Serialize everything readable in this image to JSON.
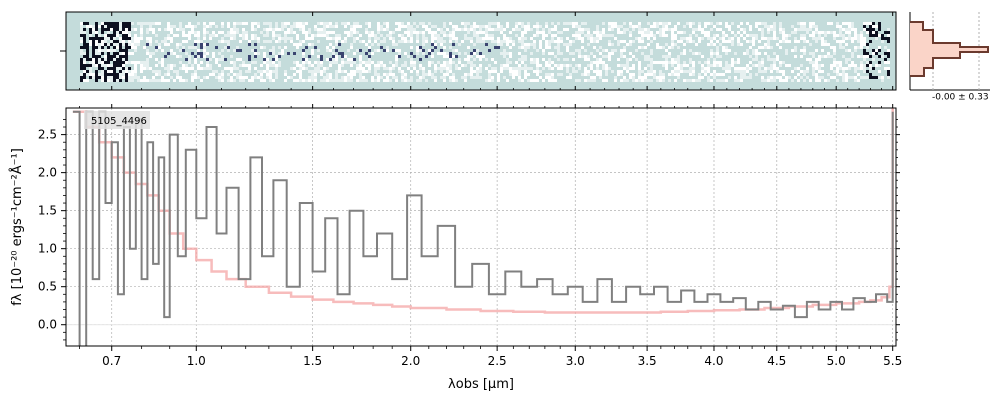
{
  "chart_data": {
    "type": "line",
    "object_label": "5105_4496",
    "xlabel": "λobs [μm]",
    "ylabel": "fλ [10⁻²⁰ ergs⁻¹cm⁻²Å⁻¹]",
    "x_ticks": [
      0.7,
      1.0,
      1.5,
      2.0,
      2.5,
      3.0,
      3.5,
      4.0,
      4.5,
      5.0,
      5.5
    ],
    "x_tick_labels": [
      "0.7",
      "1.0",
      "1.5",
      "2.0",
      "2.5",
      "3.0",
      "3.5",
      "4.0",
      "4.5",
      "5.0",
      "5.5"
    ],
    "y_ticks": [
      0.0,
      0.5,
      1.0,
      1.5,
      2.0,
      2.5
    ],
    "y_tick_labels": [
      "0.0",
      "0.5",
      "1.0",
      "1.5",
      "2.0",
      "2.5"
    ],
    "xlim": [
      0.56,
      5.53
    ],
    "ylim": [
      -0.28,
      2.85
    ],
    "x_scale": "sqrt",
    "grid": true,
    "histogram_label": "-0.00 ± 0.33",
    "colors": {
      "data": "#808080",
      "model": "#f4a6a6",
      "spectrum2d_bg": "#c4dcdb",
      "spectrum2d_dark": "#1a1f3a",
      "hist_line": "#6b3a2e",
      "hist_fill": "#fad4c8",
      "grid": "#b0b0b0"
    },
    "series": [
      {
        "role": "data",
        "x": [
          0.58,
          0.6,
          0.62,
          0.64,
          0.66,
          0.68,
          0.7,
          0.72,
          0.74,
          0.76,
          0.78,
          0.8,
          0.82,
          0.84,
          0.86,
          0.88,
          0.9,
          0.93,
          0.96,
          1.0,
          1.04,
          1.08,
          1.12,
          1.17,
          1.22,
          1.27,
          1.32,
          1.38,
          1.44,
          1.5,
          1.56,
          1.62,
          1.68,
          1.75,
          1.82,
          1.9,
          1.98,
          2.06,
          2.15,
          2.25,
          2.35,
          2.45,
          2.55,
          2.65,
          2.75,
          2.85,
          2.95,
          3.05,
          3.15,
          3.25,
          3.35,
          3.45,
          3.55,
          3.65,
          3.75,
          3.85,
          3.95,
          4.05,
          4.15,
          4.25,
          4.35,
          4.45,
          4.55,
          4.65,
          4.75,
          4.85,
          4.95,
          5.05,
          5.15,
          5.25,
          5.35,
          5.45,
          5.5
        ],
        "y": [
          2.8,
          -0.3,
          2.8,
          0.6,
          2.8,
          1.6,
          2.4,
          0.4,
          2.6,
          1.0,
          2.7,
          0.6,
          2.4,
          0.8,
          2.2,
          0.1,
          2.5,
          0.9,
          2.3,
          1.4,
          2.6,
          1.2,
          1.8,
          0.6,
          2.2,
          0.9,
          1.9,
          0.5,
          1.6,
          0.7,
          1.4,
          0.4,
          1.5,
          0.9,
          1.2,
          0.6,
          1.7,
          0.9,
          1.3,
          0.5,
          0.8,
          0.4,
          0.7,
          0.5,
          0.6,
          0.4,
          0.5,
          0.3,
          0.6,
          0.3,
          0.5,
          0.4,
          0.5,
          0.3,
          0.45,
          0.3,
          0.4,
          0.3,
          0.35,
          0.2,
          0.3,
          0.2,
          0.25,
          0.1,
          0.3,
          0.2,
          0.3,
          0.2,
          0.35,
          0.3,
          0.4,
          0.3,
          2.8
        ]
      },
      {
        "role": "model",
        "x": [
          0.58,
          0.62,
          0.66,
          0.7,
          0.74,
          0.78,
          0.82,
          0.86,
          0.9,
          0.95,
          1.0,
          1.06,
          1.12,
          1.2,
          1.3,
          1.4,
          1.5,
          1.6,
          1.7,
          1.8,
          1.9,
          2.0,
          2.2,
          2.4,
          2.6,
          2.8,
          3.0,
          3.2,
          3.4,
          3.6,
          3.8,
          4.0,
          4.2,
          4.4,
          4.6,
          4.8,
          5.0,
          5.2,
          5.3,
          5.4,
          5.47,
          5.5
        ],
        "y": [
          2.8,
          2.6,
          2.4,
          2.2,
          2.0,
          1.85,
          1.7,
          1.5,
          1.2,
          1.0,
          0.85,
          0.7,
          0.6,
          0.5,
          0.42,
          0.37,
          0.33,
          0.3,
          0.28,
          0.26,
          0.24,
          0.22,
          0.2,
          0.18,
          0.17,
          0.16,
          0.16,
          0.16,
          0.16,
          0.17,
          0.18,
          0.19,
          0.2,
          0.22,
          0.24,
          0.26,
          0.28,
          0.3,
          0.32,
          0.36,
          0.5,
          2.85
        ]
      }
    ]
  }
}
